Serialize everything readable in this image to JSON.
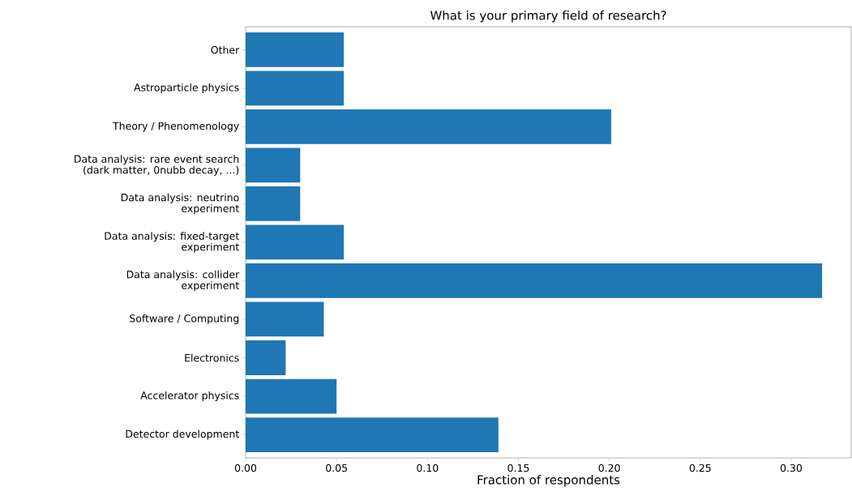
{
  "chart_data": {
    "type": "bar",
    "orientation": "horizontal",
    "title": "What is your primary field of research?",
    "xlabel": "Fraction of respondents",
    "categories": [
      "Other",
      "Astroparticle physics",
      "Theory / Phenomenology",
      "Data analysis: rare event search\n(dark matter, 0nubb decay, ...)",
      "Data analysis: neutrino\nexperiment",
      "Data analysis: fixed-target\nexperiment",
      "Data analysis: collider\nexperiment",
      "Software / Computing",
      "Electronics",
      "Accelerator physics",
      "Detector development"
    ],
    "values": [
      0.054,
      0.054,
      0.201,
      0.03,
      0.03,
      0.054,
      0.317,
      0.043,
      0.022,
      0.05,
      0.139
    ],
    "color": "#1f77b4",
    "xlim": [
      0,
      0.333
    ],
    "xticks": [
      {
        "value": 0,
        "label": "0.00"
      },
      0.05,
      {
        "value": 0.1,
        "label": "0.10"
      },
      0.15,
      {
        "value": 0.2,
        "label": "0.20"
      },
      0.25,
      {
        "value": 0.3,
        "label": "0.30"
      }
    ],
    "grid": false
  }
}
